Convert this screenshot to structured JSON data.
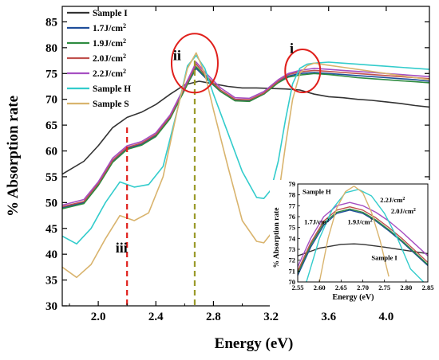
{
  "chart_data": [
    {
      "id": "main",
      "type": "line",
      "xlabel": "Energy (eV)",
      "ylabel": "% Absorption rate",
      "xlim": [
        1.75,
        4.3
      ],
      "ylim": [
        30,
        88
      ],
      "xticks": [
        2.0,
        2.4,
        2.8,
        3.2,
        3.6,
        4.0
      ],
      "xtick_labels": [
        "2.0",
        "2.4",
        "2.8",
        "3.2",
        "3.6",
        "4.0"
      ],
      "yticks": [
        30,
        35,
        40,
        45,
        50,
        55,
        60,
        65,
        70,
        75,
        80,
        85
      ],
      "ytick_labels": [
        "30",
        "35",
        "40",
        "45",
        "50",
        "55",
        "60",
        "65",
        "70",
        "75",
        "80",
        "85"
      ],
      "grid": false,
      "legend_position": "top-left",
      "series": [
        {
          "name": "Sample I",
          "color": "#333333",
          "x": [
            1.75,
            1.9,
            2.0,
            2.1,
            2.2,
            2.3,
            2.4,
            2.5,
            2.6,
            2.7,
            2.8,
            2.9,
            3.0,
            3.1,
            3.2,
            3.3,
            3.4,
            3.5,
            3.6,
            3.7,
            3.8,
            3.9,
            4.0,
            4.1,
            4.2,
            4.3
          ],
          "y": [
            55.5,
            58,
            61,
            64.5,
            66.5,
            67.5,
            69,
            71,
            72.8,
            73.5,
            73,
            72.5,
            72.2,
            72.2,
            72.1,
            72,
            71.8,
            71,
            70.5,
            70.3,
            70,
            69.8,
            69.5,
            69.2,
            68.8,
            68.5
          ]
        },
        {
          "name": "1.7J/cm²",
          "color": "#1f4e9a",
          "x": [
            1.75,
            1.9,
            2.0,
            2.1,
            2.2,
            2.3,
            2.4,
            2.5,
            2.6,
            2.68,
            2.75,
            2.85,
            2.95,
            3.05,
            3.15,
            3.25,
            3.32,
            3.4,
            3.5,
            3.6,
            3.7,
            3.8,
            3.9,
            4.0,
            4.1,
            4.2,
            4.3
          ],
          "y": [
            49,
            50,
            53.5,
            58,
            60.5,
            61.3,
            63,
            66.5,
            72,
            76,
            74,
            71.5,
            69.8,
            69.7,
            71,
            73.3,
            74.5,
            75,
            75.2,
            75,
            74.8,
            74.6,
            74.4,
            74.2,
            74,
            73.8,
            73.5
          ]
        },
        {
          "name": "1.9J/cm²",
          "color": "#2e8b40",
          "x": [
            1.75,
            1.9,
            2.0,
            2.1,
            2.2,
            2.3,
            2.4,
            2.5,
            2.6,
            2.68,
            2.75,
            2.85,
            2.95,
            3.05,
            3.15,
            3.25,
            3.32,
            3.4,
            3.5,
            3.6,
            3.7,
            3.8,
            3.9,
            4.0,
            4.1,
            4.2,
            4.3
          ],
          "y": [
            48.8,
            49.8,
            53.3,
            57.8,
            60.3,
            61.1,
            62.8,
            66.3,
            71.8,
            76.3,
            74.2,
            71.5,
            69.7,
            69.6,
            71,
            73.2,
            74.3,
            74.7,
            75,
            74.8,
            74.5,
            74.2,
            74,
            73.8,
            73.6,
            73.4,
            73.2
          ]
        },
        {
          "name": "2.0J/cm²",
          "color": "#c0504d",
          "x": [
            1.75,
            1.9,
            2.0,
            2.1,
            2.2,
            2.3,
            2.4,
            2.5,
            2.6,
            2.68,
            2.75,
            2.85,
            2.95,
            3.05,
            3.15,
            3.25,
            3.32,
            3.4,
            3.5,
            3.6,
            3.7,
            3.8,
            3.9,
            4.0,
            4.1,
            4.2,
            4.3
          ],
          "y": [
            49.2,
            50.2,
            53.7,
            58.2,
            60.7,
            61.5,
            63.2,
            66.7,
            72.2,
            76.8,
            74.5,
            71.8,
            70,
            69.9,
            71.2,
            73.5,
            74.8,
            75.3,
            75.6,
            75.4,
            75.2,
            75,
            74.8,
            74.6,
            74.4,
            74.2,
            74
          ]
        },
        {
          "name": "2.2J/cm²",
          "color": "#a64fc2",
          "x": [
            1.75,
            1.9,
            2.0,
            2.1,
            2.2,
            2.3,
            2.4,
            2.5,
            2.6,
            2.68,
            2.75,
            2.85,
            2.95,
            3.05,
            3.15,
            3.25,
            3.32,
            3.4,
            3.5,
            3.6,
            3.7,
            3.8,
            3.9,
            4.0,
            4.1,
            4.2,
            4.3
          ],
          "y": [
            49.5,
            50.6,
            54,
            58.6,
            61,
            61.8,
            63.5,
            67,
            72.5,
            77.2,
            75,
            72.2,
            70.3,
            70.2,
            71.5,
            73.8,
            75,
            75.6,
            76,
            75.8,
            75.6,
            75.4,
            75.2,
            75,
            74.8,
            74.6,
            74.4
          ]
        },
        {
          "name": "Sample H",
          "color": "#33cccc",
          "x": [
            1.75,
            1.85,
            1.95,
            2.05,
            2.15,
            2.25,
            2.35,
            2.45,
            2.55,
            2.62,
            2.68,
            2.74,
            2.8,
            2.9,
            3.0,
            3.1,
            3.15,
            3.2,
            3.25,
            3.3,
            3.35,
            3.4,
            3.45,
            3.5,
            3.6,
            3.7,
            3.8,
            3.9,
            4.0,
            4.1,
            4.2,
            4.3
          ],
          "y": [
            43.5,
            42,
            45,
            50,
            54,
            53,
            53.5,
            57,
            68,
            76.5,
            78.5,
            76,
            71,
            63.5,
            56,
            51,
            50.8,
            52.5,
            58,
            66,
            73,
            76,
            76.8,
            77,
            77.2,
            77,
            76.8,
            76.6,
            76.4,
            76.2,
            76,
            75.8
          ]
        },
        {
          "name": "Sample S",
          "color": "#d9b46e",
          "x": [
            1.75,
            1.85,
            1.95,
            2.05,
            2.15,
            2.25,
            2.35,
            2.45,
            2.55,
            2.62,
            2.68,
            2.74,
            2.8,
            2.9,
            3.0,
            3.1,
            3.15,
            3.2,
            3.25,
            3.3,
            3.35,
            3.4,
            3.45,
            3.5,
            3.6,
            3.7,
            3.8,
            3.9,
            4.0,
            4.1,
            4.2,
            4.3
          ],
          "y": [
            37.5,
            35.5,
            38,
            43,
            47.5,
            46.5,
            48,
            55,
            68,
            76,
            79,
            75,
            68,
            57,
            46.5,
            42.5,
            42.2,
            44,
            51,
            61,
            70,
            75,
            76.5,
            77,
            76.6,
            76.2,
            75.8,
            75.4,
            75,
            74.6,
            74.2,
            73.8
          ]
        }
      ],
      "annotations": [
        {
          "text": "i",
          "x": 3.33,
          "y": 79
        },
        {
          "text": "ii",
          "x": 2.52,
          "y": 77.6
        },
        {
          "text": "iii",
          "x": 2.12,
          "y": 40.3
        }
      ],
      "reference_lines": [
        {
          "x": 2.2,
          "color": "#e0201c"
        },
        {
          "x": 2.67,
          "color": "#9a9a2a"
        }
      ],
      "highlight_circles": [
        {
          "cx": 2.67,
          "cy": 77,
          "color": "#e0201c"
        },
        {
          "cx": 3.42,
          "cy": 75.5,
          "color": "#e0201c"
        }
      ]
    },
    {
      "id": "inset",
      "type": "line",
      "xlabel": "Energy (eV)",
      "ylabel": "% Absorption rate",
      "xlim": [
        2.55,
        2.85
      ],
      "ylim": [
        70,
        79
      ],
      "xticks": [
        2.55,
        2.6,
        2.65,
        2.7,
        2.75,
        2.8,
        2.85
      ],
      "xtick_labels": [
        "2.55",
        "2.60",
        "2.65",
        "2.70",
        "2.75",
        "2.80",
        "2.85"
      ],
      "yticks": [
        70,
        71,
        72,
        73,
        74,
        75,
        76,
        77,
        78,
        79
      ],
      "ytick_labels": [
        "70",
        "71",
        "72",
        "73",
        "74",
        "75",
        "76",
        "77",
        "78",
        "79"
      ],
      "series": [
        {
          "name": "Sample I",
          "color": "#333333",
          "x": [
            2.55,
            2.6,
            2.65,
            2.68,
            2.7,
            2.75,
            2.8,
            2.85
          ],
          "y": [
            72.4,
            73.1,
            73.45,
            73.5,
            73.45,
            73.2,
            72.9,
            72.6
          ]
        },
        {
          "name": "1.7J/cm²",
          "color": "#1f4e9a",
          "x": [
            2.55,
            2.58,
            2.61,
            2.64,
            2.67,
            2.7,
            2.73,
            2.76,
            2.79,
            2.82,
            2.85
          ],
          "y": [
            70.6,
            73.2,
            75.2,
            76.3,
            76.6,
            76.3,
            75.6,
            74.7,
            73.7,
            72.6,
            71.5
          ]
        },
        {
          "name": "1.9J/cm²",
          "color": "#2e8b40",
          "x": [
            2.55,
            2.58,
            2.61,
            2.64,
            2.67,
            2.7,
            2.73,
            2.76,
            2.79,
            2.82,
            2.85
          ],
          "y": [
            70.8,
            73.4,
            75.4,
            76.4,
            76.7,
            76.4,
            75.7,
            74.8,
            73.8,
            72.7,
            71.6
          ]
        },
        {
          "name": "2.0J/cm²",
          "color": "#c0504d",
          "x": [
            2.55,
            2.58,
            2.61,
            2.64,
            2.67,
            2.7,
            2.73,
            2.76,
            2.79,
            2.82,
            2.85
          ],
          "y": [
            71,
            73.6,
            75.6,
            76.6,
            76.9,
            76.6,
            75.9,
            75,
            74,
            72.9,
            71.8
          ]
        },
        {
          "name": "2.2J/cm²",
          "color": "#a64fc2",
          "x": [
            2.55,
            2.58,
            2.61,
            2.64,
            2.67,
            2.7,
            2.73,
            2.76,
            2.79,
            2.82,
            2.85
          ],
          "y": [
            71.4,
            74,
            76,
            77,
            77.3,
            77,
            76.4,
            75.6,
            74.6,
            73.5,
            72.4
          ]
        },
        {
          "name": "Sample H",
          "color": "#33cccc",
          "x": [
            2.57,
            2.6,
            2.63,
            2.66,
            2.69,
            2.72,
            2.75,
            2.78,
            2.81,
            2.84
          ],
          "y": [
            70,
            74,
            76.7,
            78.2,
            78.5,
            77.9,
            76.3,
            74,
            71.2,
            70
          ]
        },
        {
          "name": "Sample S",
          "color": "#d9b46e",
          "x": [
            2.6,
            2.62,
            2.64,
            2.66,
            2.68,
            2.7,
            2.72,
            2.74,
            2.76
          ],
          "y": [
            70,
            74,
            76.8,
            78.3,
            78.8,
            78.2,
            76.4,
            73.8,
            70.5
          ]
        }
      ],
      "labels": [
        {
          "text": "Sample H",
          "x": 2.561,
          "y": 78.1
        },
        {
          "text": "2.2J/cm²",
          "x": 2.74,
          "y": 77.3
        },
        {
          "text": "2.0J/cm²",
          "x": 2.765,
          "y": 76.3
        },
        {
          "text": "1.7J/cm²",
          "x": 2.565,
          "y": 75.3
        },
        {
          "text": "1.9J/cm²",
          "x": 2.665,
          "y": 75.3
        },
        {
          "text": "Sample I",
          "x": 2.72,
          "y": 72.0
        }
      ]
    }
  ]
}
